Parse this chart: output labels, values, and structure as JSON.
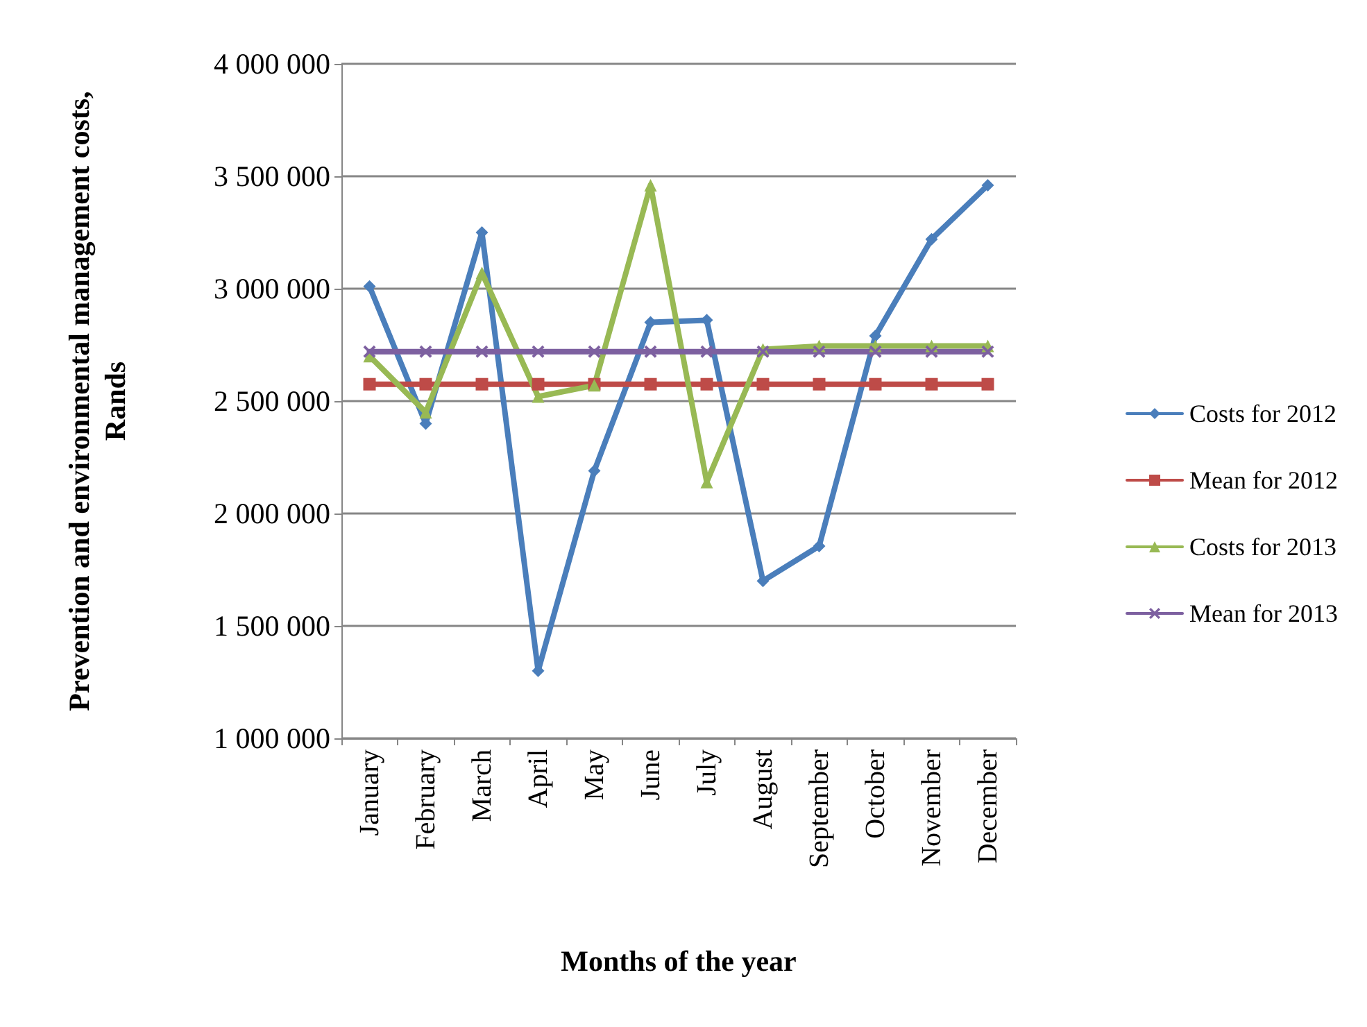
{
  "chart_data": {
    "type": "line",
    "xlabel": "Months of the year",
    "ylabel": "Prevention and environmental management costs, Rands",
    "categories": [
      "January",
      "February",
      "March",
      "April",
      "May",
      "June",
      "July",
      "August",
      "September",
      "October",
      "November",
      "December"
    ],
    "series": [
      {
        "name": "Costs for 2012",
        "color": "#4a7ebb",
        "marker": "diamond",
        "values": [
          3010000,
          2400000,
          3250000,
          1300000,
          2190000,
          2850000,
          2860000,
          1700000,
          1855000,
          2790000,
          3220000,
          3460000
        ]
      },
      {
        "name": "Mean for 2012",
        "color": "#be4b48",
        "marker": "square",
        "values": [
          2575000,
          2575000,
          2575000,
          2575000,
          2575000,
          2575000,
          2575000,
          2575000,
          2575000,
          2575000,
          2575000,
          2575000
        ]
      },
      {
        "name": "Costs for 2013",
        "color": "#98b954",
        "marker": "triangle",
        "values": [
          2700000,
          2450000,
          3070000,
          2520000,
          2570000,
          3460000,
          2140000,
          2730000,
          2745000,
          2745000,
          2745000,
          2745000
        ]
      },
      {
        "name": "Mean for 2013",
        "color": "#7d60a0",
        "marker": "cross",
        "values": [
          2720000,
          2720000,
          2720000,
          2720000,
          2720000,
          2720000,
          2720000,
          2720000,
          2720000,
          2720000,
          2720000,
          2720000
        ]
      }
    ],
    "ylim": [
      1000000,
      4000000
    ],
    "yticks": [
      {
        "value": 1000000,
        "label": "1 000 000"
      },
      {
        "value": 1500000,
        "label": "1 500 000"
      },
      {
        "value": 2000000,
        "label": "2 000 000"
      },
      {
        "value": 2500000,
        "label": "2 500 000"
      },
      {
        "value": 3000000,
        "label": "3 000 000"
      },
      {
        "value": 3500000,
        "label": "3 500 000"
      },
      {
        "value": 4000000,
        "label": "4 000 000"
      }
    ],
    "grid": "y",
    "legend": "right",
    "line_style": "solid"
  }
}
